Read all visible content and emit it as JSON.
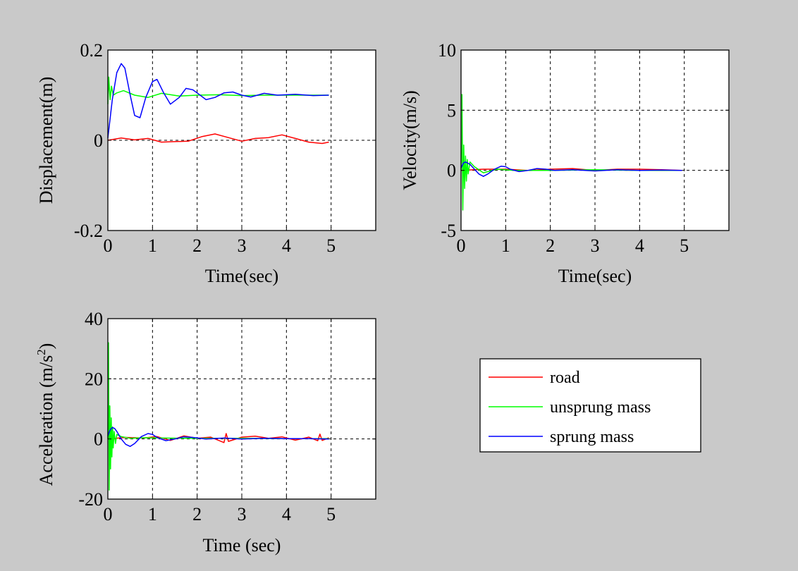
{
  "colors": {
    "background": "#c9c9c9",
    "axes_bg": "#ffffff",
    "road": "#ff0000",
    "unsprung": "#00ff00",
    "sprung": "#0000ff",
    "grid": "#000000"
  },
  "legend": {
    "placement": "lower-right panel",
    "entries": [
      {
        "label": "road",
        "color": "#ff0000"
      },
      {
        "label": "unsprung mass",
        "color": "#00ff00"
      },
      {
        "label": "sprung mass",
        "color": "#0000ff"
      }
    ]
  },
  "chart_data": [
    {
      "type": "line",
      "xlabel": "Time(sec)",
      "ylabel": "Displacement(m)",
      "xlim": [
        0,
        6
      ],
      "ylim": [
        -0.2,
        0.2
      ],
      "xticks": [
        0,
        1,
        2,
        3,
        4,
        5
      ],
      "xtick_labels": [
        "0",
        "1",
        "2",
        "3",
        "4",
        "5"
      ],
      "yticks": [
        -0.2,
        0,
        0.2
      ],
      "ytick_labels": [
        "-0.2",
        "0",
        "0.2"
      ],
      "grid": true,
      "series": [
        {
          "name": "road",
          "color": "#ff0000",
          "x": [
            0,
            0.3,
            0.6,
            0.9,
            1.2,
            1.5,
            1.8,
            2.1,
            2.4,
            2.7,
            3.0,
            3.3,
            3.6,
            3.9,
            4.2,
            4.5,
            4.8,
            4.95
          ],
          "y": [
            0,
            0.005,
            0.001,
            0.004,
            -0.004,
            -0.003,
            -0.002,
            0.008,
            0.014,
            0.006,
            -0.002,
            0.004,
            0.006,
            0.012,
            0.004,
            -0.004,
            -0.007,
            -0.004
          ]
        },
        {
          "name": "unsprung mass",
          "color": "#00ff00",
          "x": [
            0,
            0.02,
            0.05,
            0.08,
            0.12,
            0.2,
            0.35,
            0.6,
            0.9,
            1.2,
            1.6,
            2.0,
            2.5,
            3.0,
            3.5,
            4.0,
            4.5,
            4.95
          ],
          "y": [
            0.08,
            0.14,
            0.09,
            0.12,
            0.1,
            0.105,
            0.11,
            0.1,
            0.095,
            0.104,
            0.098,
            0.1,
            0.101,
            0.099,
            0.1,
            0.1,
            0.1,
            0.1
          ]
        },
        {
          "name": "sprung mass",
          "color": "#0000ff",
          "x": [
            0,
            0.1,
            0.2,
            0.3,
            0.38,
            0.5,
            0.6,
            0.72,
            0.85,
            1.0,
            1.1,
            1.25,
            1.4,
            1.6,
            1.75,
            1.9,
            2.0,
            2.2,
            2.4,
            2.6,
            2.8,
            3.0,
            3.2,
            3.5,
            3.8,
            4.2,
            4.6,
            4.95
          ],
          "y": [
            0.005,
            0.09,
            0.15,
            0.17,
            0.16,
            0.1,
            0.055,
            0.05,
            0.095,
            0.13,
            0.135,
            0.105,
            0.08,
            0.095,
            0.115,
            0.112,
            0.105,
            0.09,
            0.095,
            0.105,
            0.107,
            0.1,
            0.096,
            0.104,
            0.1,
            0.102,
            0.099,
            0.1
          ]
        }
      ]
    },
    {
      "type": "line",
      "xlabel": "Time(sec)",
      "ylabel": "Velocity(m/s)",
      "xlim": [
        0,
        6
      ],
      "ylim": [
        -5,
        10
      ],
      "xticks": [
        0,
        1,
        2,
        3,
        4,
        5
      ],
      "xtick_labels": [
        "0",
        "1",
        "2",
        "3",
        "4",
        "5"
      ],
      "yticks": [
        -5,
        0,
        5,
        10
      ],
      "ytick_labels": [
        "-5",
        "0",
        "5",
        "10"
      ],
      "grid": true,
      "series": [
        {
          "name": "road",
          "color": "#ff0000",
          "x": [
            0,
            0.5,
            1.0,
            1.5,
            2.0,
            2.5,
            3.0,
            3.5,
            4.0,
            4.5,
            4.95
          ],
          "y": [
            0,
            0.1,
            0.1,
            0.0,
            0.1,
            0.15,
            0.0,
            0.1,
            0.1,
            0.05,
            0.0
          ]
        },
        {
          "name": "unsprung mass",
          "color": "#00ff00",
          "x": [
            0,
            0.02,
            0.04,
            0.06,
            0.08,
            0.1,
            0.12,
            0.14,
            0.16,
            0.2,
            0.3,
            0.5,
            0.8,
            1.2,
            2.0,
            3.0,
            4.0,
            4.95
          ],
          "y": [
            0,
            6.3,
            -3.3,
            2.1,
            -1.5,
            1.2,
            -0.9,
            0.9,
            -0.3,
            0.7,
            0.3,
            -0.2,
            0.1,
            0.0,
            0.0,
            0.05,
            0.0,
            0.0
          ]
        },
        {
          "name": "sprung mass",
          "color": "#0000ff",
          "x": [
            0,
            0.05,
            0.1,
            0.2,
            0.3,
            0.4,
            0.5,
            0.6,
            0.75,
            0.9,
            1.0,
            1.1,
            1.3,
            1.5,
            1.7,
            1.9,
            2.1,
            2.5,
            3.0,
            3.5,
            4.0,
            4.5,
            4.95
          ],
          "y": [
            0.2,
            0.6,
            0.7,
            0.5,
            0.1,
            -0.3,
            -0.5,
            -0.3,
            0.1,
            0.35,
            0.3,
            0.1,
            -0.1,
            0.0,
            0.15,
            0.1,
            0.0,
            0.05,
            -0.05,
            0.05,
            0.0,
            0.02,
            0.0
          ]
        }
      ]
    },
    {
      "type": "line",
      "xlabel": "Time (sec)",
      "ylabel": "Acceleration (m/s2)",
      "xlim": [
        0,
        6
      ],
      "ylim": [
        -20,
        40
      ],
      "xticks": [
        0,
        1,
        2,
        3,
        4,
        5
      ],
      "xtick_labels": [
        "0",
        "1",
        "2",
        "3",
        "4",
        "5"
      ],
      "yticks": [
        -20,
        0,
        20,
        40
      ],
      "ytick_labels": [
        "-20",
        "0",
        "20",
        "40"
      ],
      "grid": true,
      "series": [
        {
          "name": "road",
          "color": "#ff0000",
          "x": [
            0,
            0.4,
            0.8,
            1.1,
            1.4,
            1.7,
            2.0,
            2.3,
            2.6,
            2.65,
            2.7,
            3.0,
            3.3,
            3.6,
            3.9,
            4.2,
            4.5,
            4.7,
            4.75,
            4.8,
            4.95
          ],
          "y": [
            0,
            0.5,
            0.3,
            0.8,
            -0.5,
            1.0,
            0.2,
            0.6,
            -1.2,
            1.8,
            -0.8,
            0.6,
            0.9,
            0.2,
            0.7,
            -0.4,
            0.6,
            -0.6,
            1.6,
            -0.5,
            0.4
          ]
        },
        {
          "name": "unsprung mass",
          "color": "#00ff00",
          "x": [
            0,
            0.015,
            0.03,
            0.045,
            0.06,
            0.075,
            0.09,
            0.105,
            0.12,
            0.14,
            0.17,
            0.2,
            0.3,
            0.5,
            0.8,
            1.2,
            2.0,
            3.0,
            4.0,
            4.95
          ],
          "y": [
            0,
            32,
            -17,
            11,
            -10,
            7,
            -6,
            4,
            -3,
            2.5,
            -1.5,
            1.5,
            0.8,
            0.2,
            0.4,
            0.3,
            0.2,
            0.2,
            0.1,
            0.1
          ]
        },
        {
          "name": "sprung mass",
          "color": "#0000ff",
          "x": [
            0,
            0.05,
            0.1,
            0.15,
            0.2,
            0.3,
            0.4,
            0.5,
            0.6,
            0.75,
            0.9,
            1.0,
            1.1,
            1.3,
            1.5,
            1.7,
            1.9,
            2.2,
            2.6,
            3.0,
            3.5,
            4.0,
            4.5,
            4.95
          ],
          "y": [
            1.0,
            3.0,
            3.8,
            3.5,
            2.5,
            0.0,
            -1.8,
            -2.5,
            -1.5,
            0.8,
            1.8,
            1.5,
            0.5,
            -0.6,
            0.0,
            0.7,
            0.5,
            0.0,
            0.3,
            0.0,
            0.2,
            0.1,
            0.1,
            0.0
          ]
        }
      ]
    }
  ]
}
